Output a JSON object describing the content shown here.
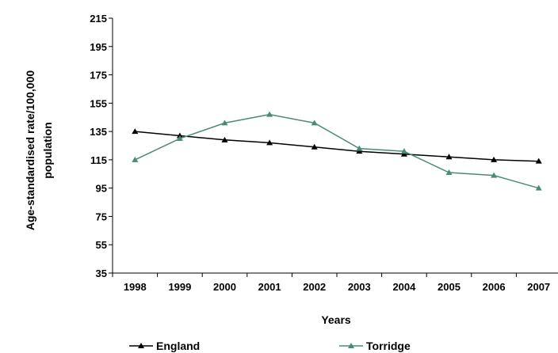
{
  "chart_data": {
    "type": "line",
    "title": "",
    "xlabel": "Years",
    "ylabel_line1": "Age-standardised rate/100,000",
    "ylabel_line2": "population",
    "categories": [
      "1998",
      "1999",
      "2000",
      "2001",
      "2002",
      "2003",
      "2004",
      "2005",
      "2006",
      "2007"
    ],
    "ylim": [
      35,
      215
    ],
    "yticks": [
      35,
      55,
      75,
      95,
      115,
      135,
      155,
      175,
      195,
      215
    ],
    "grid": false,
    "legend_position": "bottom",
    "series": [
      {
        "name": "England",
        "color": "#000000",
        "marker": "triangle",
        "values": [
          135,
          132,
          129,
          127,
          124,
          121,
          119,
          117,
          115,
          114
        ]
      },
      {
        "name": "Torridge",
        "color": "#4a8a78",
        "marker": "triangle",
        "values": [
          115,
          130,
          141,
          147,
          141,
          123,
          121,
          106,
          104,
          95
        ]
      }
    ]
  }
}
